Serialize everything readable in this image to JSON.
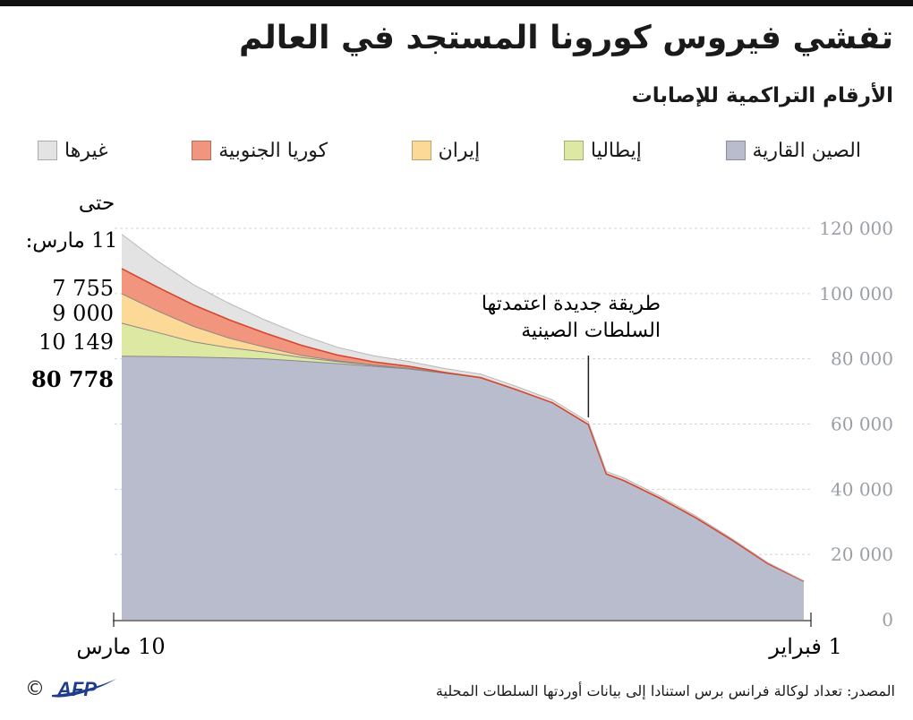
{
  "header": {
    "title": "تفشي فيروس كورونا المستجد في العالم",
    "subtitle": "الأرقام التراكمية للإصابات"
  },
  "colors": {
    "china": "#b8bccd",
    "italy": "#dde9a3",
    "iran": "#fcd997",
    "korea": "#f2957e",
    "others": "#e3e3e3",
    "line": "#888888"
  },
  "chart_data": {
    "type": "area",
    "stacked": true,
    "x_axis": "date, plotted right-to-left from 1 February (right) to 10 March (left)",
    "x": [
      "2020-02-01",
      "2020-02-03",
      "2020-02-05",
      "2020-02-07",
      "2020-02-09",
      "2020-02-11",
      "2020-02-12",
      "2020-02-13",
      "2020-02-15",
      "2020-02-17",
      "2020-02-19",
      "2020-02-21",
      "2020-02-23",
      "2020-02-25",
      "2020-02-27",
      "2020-02-29",
      "2020-03-02",
      "2020-03-04",
      "2020-03-06",
      "2020-03-08",
      "2020-03-10"
    ],
    "series": [
      {
        "name": "الصين القارية",
        "key": "china",
        "values": [
          11800,
          17200,
          24400,
          31200,
          37200,
          42600,
          44650,
          59800,
          66500,
          70500,
          74200,
          75600,
          76900,
          77700,
          78500,
          79300,
          80000,
          80300,
          80550,
          80700,
          80778
        ]
      },
      {
        "name": "إيطاليا",
        "key": "italy",
        "values": [
          0,
          0,
          0,
          0,
          0,
          0,
          0,
          0,
          0,
          0,
          0,
          20,
          150,
          320,
          650,
          1130,
          2036,
          3089,
          4636,
          7375,
          10149
        ]
      },
      {
        "name": "إيران",
        "key": "iran",
        "values": [
          0,
          0,
          0,
          0,
          0,
          0,
          0,
          0,
          0,
          0,
          0,
          5,
          43,
          95,
          245,
          593,
          1501,
          2922,
          4747,
          6566,
          9000
        ]
      },
      {
        "name": "كوريا الجنوبية",
        "key": "korea",
        "values": [
          0,
          0,
          0,
          0,
          0,
          0,
          0,
          0,
          0,
          0,
          20,
          204,
          602,
          977,
          1766,
          3150,
          4335,
          5621,
          6593,
          7313,
          7755
        ]
      },
      {
        "name": "غيرها",
        "key": "others",
        "values": [
          130,
          280,
          420,
          560,
          680,
          780,
          800,
          850,
          900,
          1000,
          1100,
          1200,
          1500,
          1900,
          2400,
          3200,
          4000,
          5000,
          6200,
          8000,
          10500
        ]
      }
    ],
    "y_ticks": [
      "0",
      "20 000",
      "40 000",
      "60 000",
      "80 000",
      "100 000",
      "120 000"
    ],
    "ylim": [
      0,
      120000
    ],
    "x_tick_labels": [
      {
        "label": "10 مارس",
        "date": "2020-03-10"
      },
      {
        "label": "1 فبراير",
        "date": "2020-02-01"
      }
    ],
    "end_labels": {
      "heading": "حتى",
      "date": "11 مارس:",
      "values": [
        "7 755",
        "9 000",
        "10 149",
        "80 778"
      ]
    },
    "annotation": {
      "text": "طريقة جديدة اعتمدتها السلطات الصينية",
      "date": "2020-02-13"
    },
    "grid": true
  },
  "footer": {
    "source": "المصدر: تعداد لوكالة فرانس برس استنادا إلى بيانات أوردتها السلطات المحلية",
    "logo": "AFP",
    "copyright": "©"
  }
}
